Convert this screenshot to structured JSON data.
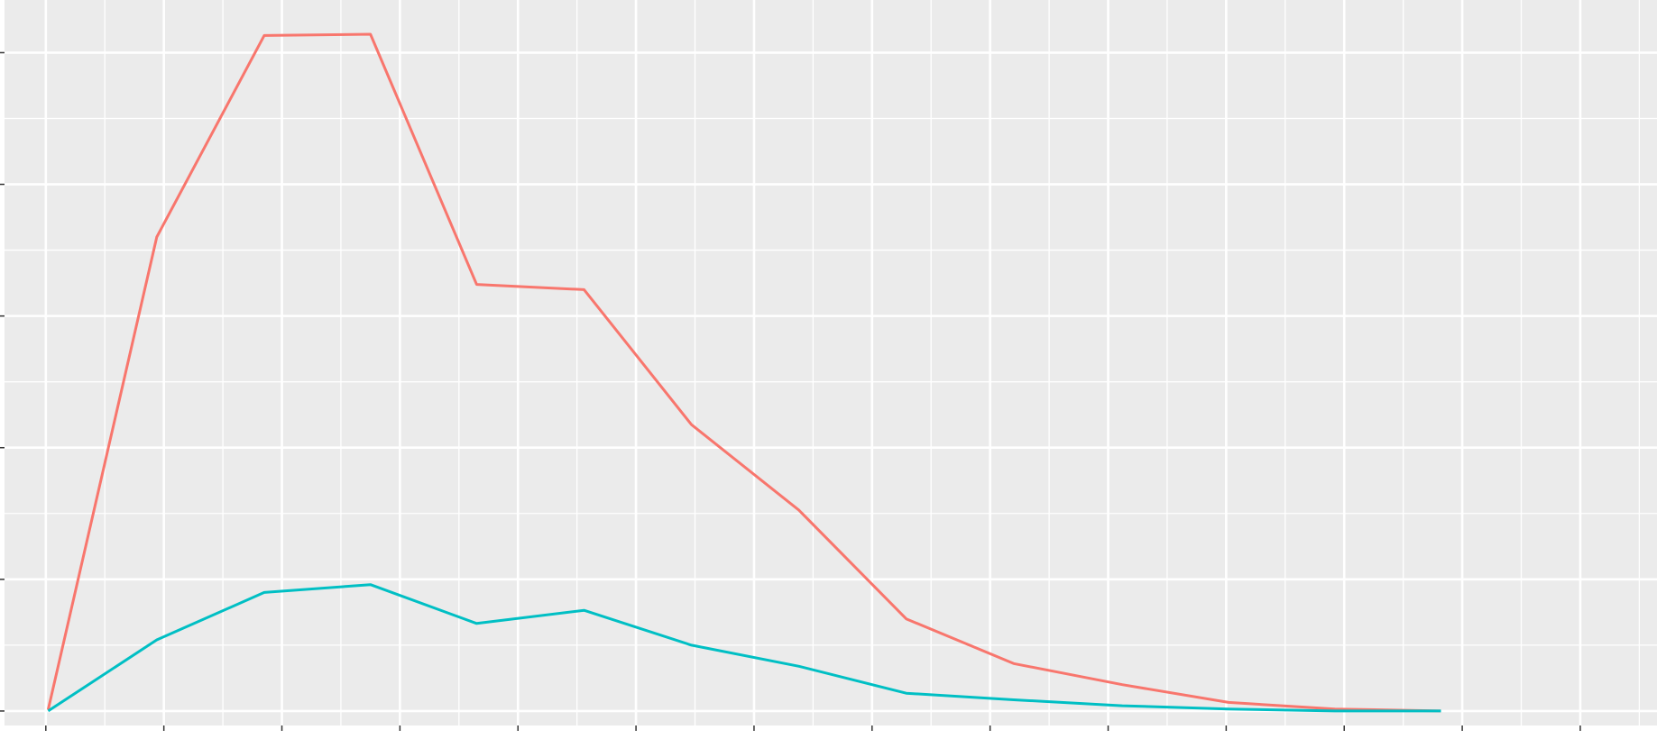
{
  "chart_data": {
    "type": "line",
    "title": "",
    "xlabel": "",
    "ylabel": "",
    "xlim": [
      -0.35,
      13.65
    ],
    "ylim": [
      -0.22,
      10.8
    ],
    "grid": true,
    "background": "#EBEBEB",
    "grid_color": "#FFFFFF",
    "series": [
      {
        "color": "#F8766D",
        "x": [
          0.02,
          0.94,
          1.85,
          2.75,
          3.65,
          4.56,
          5.47,
          6.38,
          7.29,
          8.2,
          9.12,
          10.02,
          10.92,
          11.82
        ],
        "y": [
          0.02,
          7.2,
          10.26,
          10.28,
          6.48,
          6.4,
          4.35,
          3.05,
          1.4,
          0.72,
          0.4,
          0.13,
          0.03,
          0.0
        ]
      },
      {
        "color": "#00BFC4",
        "x": [
          0.02,
          0.94,
          1.85,
          2.75,
          3.65,
          4.56,
          5.47,
          6.38,
          7.29,
          8.2,
          9.12,
          10.02,
          10.92,
          11.82
        ],
        "y": [
          0.0,
          1.08,
          1.8,
          1.92,
          1.33,
          1.53,
          1.0,
          0.68,
          0.27,
          0.17,
          0.08,
          0.03,
          0.0,
          0.0
        ]
      }
    ]
  }
}
